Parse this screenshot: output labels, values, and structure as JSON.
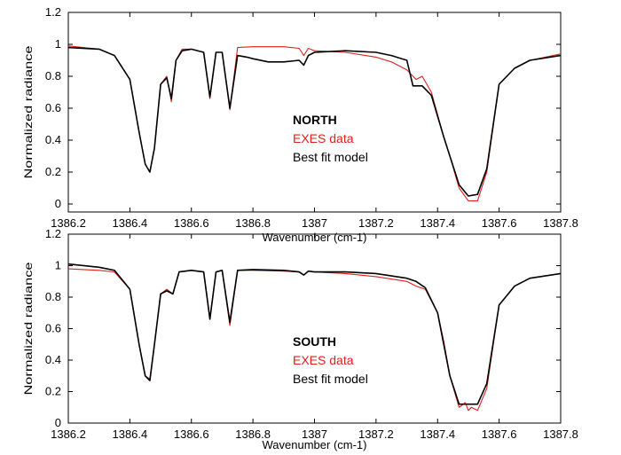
{
  "colors": {
    "exes": "#e0201b",
    "model": "#000000",
    "axis": "#000000"
  },
  "chart_data": [
    {
      "type": "line",
      "panel": "north",
      "xlabel": "Wavenumber (cm-1)",
      "ylabel": "Normalized radiance",
      "xlim": [
        1386.2,
        1387.8
      ],
      "ylim": [
        -0.05,
        1.2
      ],
      "xticks": [
        "1386.2",
        "1386.4",
        "1386.6",
        "1386.8",
        "1387",
        "1387.2",
        "1387.4",
        "1387.6",
        "1387.8"
      ],
      "yticks": [
        "0",
        "0.2",
        "0.4",
        "0.6",
        "0.8",
        "1",
        "1.2"
      ],
      "annotation": {
        "region": "NORTH",
        "exes_label": "EXES data",
        "model_label": "Best fit model"
      },
      "series": [
        {
          "key": "exes",
          "x": [
            1386.2,
            1386.3,
            1386.35,
            1386.4,
            1386.43,
            1386.45,
            1386.465,
            1386.48,
            1386.5,
            1386.52,
            1386.535,
            1386.55,
            1386.57,
            1386.6,
            1386.64,
            1386.66,
            1386.68,
            1386.7,
            1386.725,
            1386.75,
            1386.8,
            1386.9,
            1386.95,
            1386.965,
            1386.98,
            1387.0,
            1387.1,
            1387.2,
            1387.25,
            1387.3,
            1387.33,
            1387.35,
            1387.38,
            1387.42,
            1387.44,
            1387.47,
            1387.5,
            1387.53,
            1387.56,
            1387.6,
            1387.65,
            1387.7,
            1387.8
          ],
          "y": [
            0.99,
            0.97,
            0.93,
            0.78,
            0.45,
            0.25,
            0.2,
            0.35,
            0.75,
            0.8,
            0.64,
            0.9,
            0.97,
            0.97,
            0.95,
            0.66,
            0.95,
            0.95,
            0.59,
            0.98,
            0.985,
            0.985,
            0.975,
            0.93,
            0.975,
            0.96,
            0.95,
            0.92,
            0.89,
            0.84,
            0.78,
            0.8,
            0.7,
            0.42,
            0.3,
            0.1,
            0.02,
            0.02,
            0.2,
            0.75,
            0.85,
            0.9,
            0.94
          ]
        },
        {
          "key": "model",
          "x": [
            1386.2,
            1386.3,
            1386.35,
            1386.4,
            1386.43,
            1386.45,
            1386.465,
            1386.48,
            1386.5,
            1386.52,
            1386.535,
            1386.55,
            1386.57,
            1386.6,
            1386.64,
            1386.66,
            1386.68,
            1386.7,
            1386.725,
            1386.75,
            1386.78,
            1386.8,
            1386.85,
            1386.9,
            1386.95,
            1386.965,
            1386.98,
            1387.0,
            1387.1,
            1387.2,
            1387.25,
            1387.3,
            1387.32,
            1387.35,
            1387.38,
            1387.42,
            1387.44,
            1387.47,
            1387.5,
            1387.53,
            1387.56,
            1387.6,
            1387.65,
            1387.7,
            1387.8
          ],
          "y": [
            0.98,
            0.97,
            0.93,
            0.78,
            0.45,
            0.25,
            0.2,
            0.35,
            0.75,
            0.79,
            0.66,
            0.9,
            0.96,
            0.97,
            0.95,
            0.67,
            0.95,
            0.95,
            0.6,
            0.93,
            0.92,
            0.91,
            0.89,
            0.89,
            0.9,
            0.87,
            0.93,
            0.95,
            0.96,
            0.95,
            0.93,
            0.9,
            0.74,
            0.74,
            0.68,
            0.42,
            0.3,
            0.12,
            0.05,
            0.06,
            0.22,
            0.75,
            0.85,
            0.9,
            0.93
          ]
        }
      ]
    },
    {
      "type": "line",
      "panel": "south",
      "xlabel": "Wavenumber (cm-1)",
      "ylabel": "Normalized radiance",
      "xlim": [
        1386.2,
        1387.8
      ],
      "ylim": [
        0,
        1.2
      ],
      "xticks": [
        "1386.2",
        "1386.4",
        "1386.6",
        "1386.8",
        "1387",
        "1387.2",
        "1387.4",
        "1387.6",
        "1387.8"
      ],
      "yticks": [
        "0",
        "0.2",
        "0.4",
        "0.6",
        "0.8",
        "1",
        "1.2"
      ],
      "annotation": {
        "region": "SOUTH",
        "exes_label": "EXES data",
        "model_label": "Best fit model"
      },
      "series": [
        {
          "key": "exes",
          "x": [
            1386.2,
            1386.3,
            1386.35,
            1386.4,
            1386.43,
            1386.45,
            1386.465,
            1386.48,
            1386.5,
            1386.52,
            1386.54,
            1386.56,
            1386.6,
            1386.64,
            1386.66,
            1386.68,
            1386.7,
            1386.725,
            1386.75,
            1386.8,
            1386.9,
            1386.95,
            1386.965,
            1386.98,
            1387.0,
            1387.1,
            1387.2,
            1387.3,
            1387.33,
            1387.36,
            1387.4,
            1387.42,
            1387.44,
            1387.47,
            1387.49,
            1387.5,
            1387.51,
            1387.53,
            1387.56,
            1387.6,
            1387.65,
            1387.7,
            1387.8
          ],
          "y": [
            0.98,
            0.97,
            0.96,
            0.85,
            0.5,
            0.3,
            0.28,
            0.5,
            0.82,
            0.85,
            0.82,
            0.96,
            0.97,
            0.96,
            0.67,
            0.96,
            0.97,
            0.62,
            0.97,
            0.97,
            0.965,
            0.96,
            0.94,
            0.965,
            0.96,
            0.95,
            0.93,
            0.9,
            0.87,
            0.85,
            0.7,
            0.52,
            0.3,
            0.1,
            0.13,
            0.08,
            0.1,
            0.08,
            0.22,
            0.75,
            0.87,
            0.92,
            0.95
          ]
        },
        {
          "key": "model",
          "x": [
            1386.2,
            1386.3,
            1386.35,
            1386.4,
            1386.43,
            1386.45,
            1386.465,
            1386.48,
            1386.5,
            1386.52,
            1386.54,
            1386.56,
            1386.6,
            1386.64,
            1386.66,
            1386.68,
            1386.7,
            1386.725,
            1386.75,
            1386.8,
            1386.9,
            1386.95,
            1386.965,
            1386.98,
            1387.0,
            1387.1,
            1387.2,
            1387.3,
            1387.33,
            1387.36,
            1387.4,
            1387.42,
            1387.44,
            1387.47,
            1387.5,
            1387.53,
            1387.56,
            1387.6,
            1387.65,
            1387.7,
            1387.8
          ],
          "y": [
            1.01,
            0.99,
            0.97,
            0.85,
            0.5,
            0.3,
            0.27,
            0.5,
            0.82,
            0.84,
            0.82,
            0.96,
            0.97,
            0.96,
            0.66,
            0.96,
            0.97,
            0.64,
            0.97,
            0.975,
            0.97,
            0.96,
            0.94,
            0.965,
            0.96,
            0.96,
            0.95,
            0.92,
            0.9,
            0.86,
            0.7,
            0.5,
            0.3,
            0.12,
            0.12,
            0.12,
            0.25,
            0.75,
            0.87,
            0.92,
            0.95
          ]
        }
      ]
    }
  ]
}
